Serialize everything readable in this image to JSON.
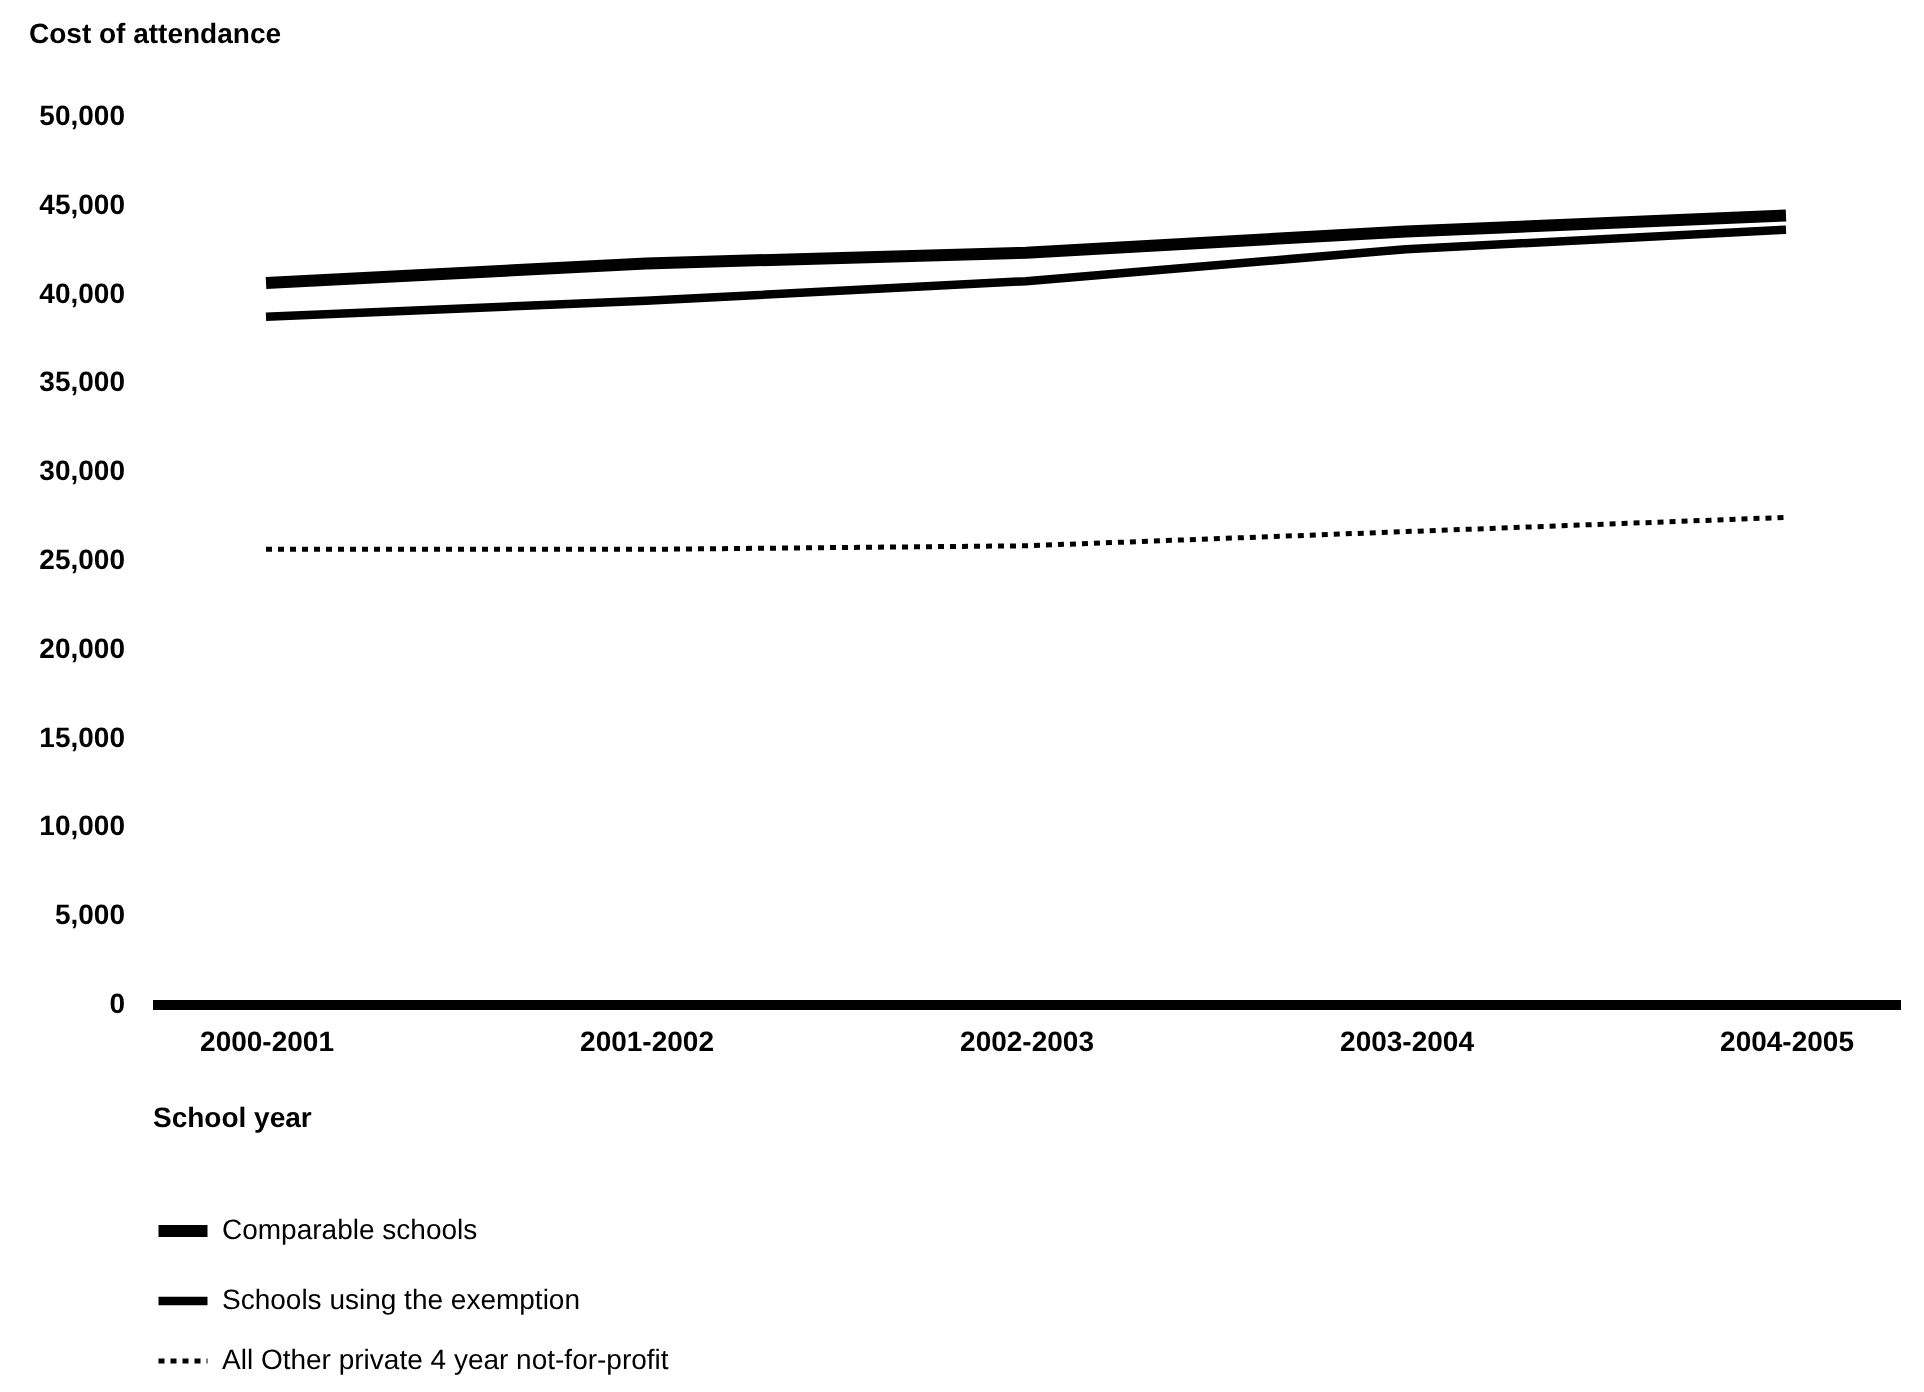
{
  "chart_data": {
    "type": "line",
    "ylabel": "Cost of attendance",
    "xlabel": "School year",
    "categories": [
      "2000-2001",
      "2001-2002",
      "2002-2003",
      "2003-2004",
      "2004-2005"
    ],
    "series": [
      {
        "name": "Comparable schools",
        "color": "#000000",
        "line_style": "solid",
        "values": [
          40600,
          41700,
          42300,
          43500,
          44400
        ]
      },
      {
        "name": "Schools using the exemption",
        "color": "#000000",
        "line_style": "solid",
        "values": [
          38700,
          39600,
          40700,
          42500,
          43600
        ]
      },
      {
        "name": "All Other private 4 year not-for-profit",
        "color": "#000000",
        "line_style": "dotted",
        "values": [
          25600,
          25600,
          25800,
          26600,
          27400
        ]
      }
    ],
    "ylim": [
      0,
      50000
    ],
    "yticks": [
      0,
      {
        "value": 5000,
        "label": "5,000"
      },
      {
        "value": 10000,
        "label": "10,000"
      },
      {
        "value": 15000,
        "label": "15,000"
      },
      {
        "value": 20000,
        "label": "20,000"
      },
      {
        "value": 25000,
        "label": "25,000"
      },
      {
        "value": 30000,
        "label": "30,000"
      },
      {
        "value": 35000,
        "label": "35,000"
      },
      {
        "value": 40000,
        "label": "40,000"
      },
      {
        "value": 45000,
        "label": "45,000"
      },
      {
        "value": 50000,
        "label": "50,000"
      }
    ],
    "legend": "bottom"
  }
}
